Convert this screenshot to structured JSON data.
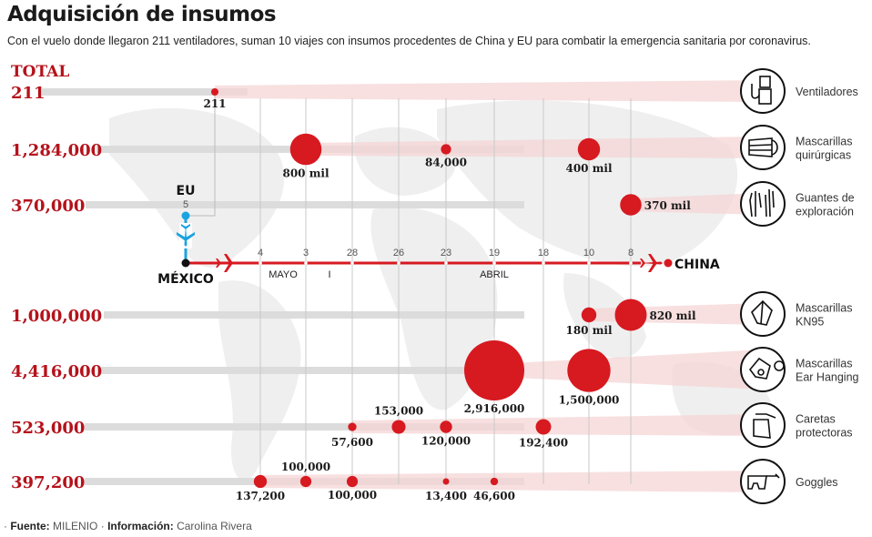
{
  "header": {
    "title": "Adquisición de insumos",
    "subtitle": "Con el vuelo donde llegaron 211 ventiladores, suman 10 viajes con insumos procedentes de China y EU para combatir la emergencia sanitaria por coronavirus."
  },
  "footer": {
    "fuente_label": "Fuente:",
    "fuente_value": "MILENIO",
    "info_label": "Información:",
    "info_value": "Carolina Rivera"
  },
  "colors": {
    "accent_red": "#d71920",
    "total_red": "#b5121b",
    "eu_blue": "#1aa3e0",
    "bar_gray": "#dcdcdc",
    "band_pink": "#f6d5d6"
  },
  "chart_data": {
    "type": "scatter",
    "title": "Adquisición de insumos",
    "total_heading": "TOTAL",
    "timeline": {
      "origin": "MÉXICO",
      "destination_china": "CHINA",
      "destination_eu": "EU",
      "eu_date": "5",
      "dates": [
        "4",
        "3",
        "28",
        "26",
        "23",
        "19",
        "18",
        "10",
        "8"
      ],
      "months": [
        {
          "label": "MAYO",
          "spans": [
            "4",
            "3"
          ]
        },
        {
          "label": "ABRIL",
          "spans": [
            "28",
            "26",
            "23",
            "19",
            "18",
            "10",
            "8"
          ]
        }
      ],
      "month_separator": "I"
    },
    "series": [
      {
        "name": "Ventiladores",
        "icon": "ventilator-icon",
        "total": "211",
        "points": [
          {
            "date": "5 (EU)",
            "value": 211,
            "label": "211"
          }
        ]
      },
      {
        "name": "Mascarillas quirúrgicas",
        "icon": "surgical-mask-icon",
        "total": "1,284,000",
        "points": [
          {
            "date": "3",
            "value": 800000,
            "label": "800 mil"
          },
          {
            "date": "23",
            "value": 84000,
            "label": "84,000"
          },
          {
            "date": "10",
            "value": 400000,
            "label": "400 mil"
          }
        ]
      },
      {
        "name": "Guantes de exploración",
        "icon": "gloves-icon",
        "total": "370,000",
        "points": [
          {
            "date": "8",
            "value": 370000,
            "label": "370 mil"
          }
        ]
      },
      {
        "name": "Mascarillas KN95",
        "icon": "kn95-mask-icon",
        "total": "1,000,000",
        "points": [
          {
            "date": "10",
            "value": 180000,
            "label": "180 mil"
          },
          {
            "date": "8",
            "value": 820000,
            "label": "820 mil"
          }
        ]
      },
      {
        "name": "Mascarillas Ear Hanging",
        "icon": "ear-hanging-mask-icon",
        "total": "4,416,000",
        "points": [
          {
            "date": "19",
            "value": 2916000,
            "label": "2,916,000"
          },
          {
            "date": "10",
            "value": 1500000,
            "label": "1,500,000"
          }
        ]
      },
      {
        "name": "Caretas protectoras",
        "icon": "face-shield-icon",
        "total": "523,000",
        "points": [
          {
            "date": "28",
            "value": 57600,
            "label": "57,600"
          },
          {
            "date": "26",
            "value": 153000,
            "label": "153,000"
          },
          {
            "date": "23",
            "value": 120000,
            "label": "120,000"
          },
          {
            "date": "18",
            "value": 192400,
            "label": "192,400"
          }
        ]
      },
      {
        "name": "Goggles",
        "icon": "goggles-icon",
        "total": "397,200",
        "points": [
          {
            "date": "4",
            "value": 137200,
            "label": "137,200"
          },
          {
            "date": "3",
            "value": 100000,
            "label": "100,000"
          },
          {
            "date": "28",
            "value": 100000,
            "label": "100,000"
          },
          {
            "date": "23",
            "value": 13400,
            "label": "13,400"
          },
          {
            "date": "19",
            "value": 46600,
            "label": "46,600"
          }
        ]
      }
    ],
    "category_labels": [
      [
        "Ventiladores"
      ],
      [
        "Mascarillas",
        "quirúrgicas"
      ],
      [
        "Guantes de",
        "exploración"
      ],
      [
        "Mascarillas",
        "KN95"
      ],
      [
        "Mascarillas",
        "Ear Hanging"
      ],
      [
        "Caretas",
        "protectoras"
      ],
      [
        "Goggles"
      ]
    ]
  }
}
